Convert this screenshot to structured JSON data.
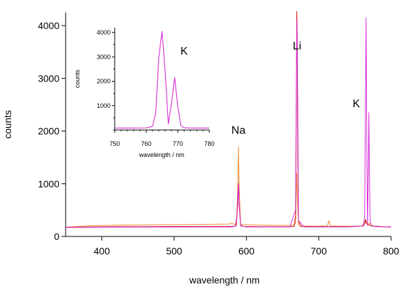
{
  "chart_data": [
    {
      "type": "line",
      "xlabel": "wavelength / nm",
      "ylabel": "counts",
      "xlim": [
        350,
        800
      ],
      "ylim": [
        0,
        4250
      ],
      "xticks": [
        400,
        500,
        600,
        700,
        800
      ],
      "yticks": [
        0,
        1000,
        2000,
        3000,
        4000
      ],
      "x_tick_labels": [
        "400",
        "500",
        "600",
        "700",
        "800"
      ],
      "y_tick_labels": [
        "0",
        "1000",
        "2000",
        "3000",
        "4000"
      ],
      "grid": false,
      "annotations": [
        {
          "text": "Na",
          "x": 589,
          "y": 1950
        },
        {
          "text": "Li",
          "x": 670,
          "y": 3550
        },
        {
          "text": "K",
          "x": 752,
          "y": 2450
        }
      ],
      "series": [
        {
          "color": "#f08a30",
          "x": [
            350,
            380,
            420,
            460,
            500,
            540,
            575,
            580,
            583,
            586,
            588,
            589,
            590,
            592,
            596,
            620,
            640,
            660,
            665,
            668,
            669.5,
            670.5,
            672,
            675,
            680,
            700,
            712,
            714,
            716,
            730,
            760,
            762,
            764,
            766,
            768,
            770,
            775,
            790,
            800
          ],
          "y": [
            175,
            200,
            215,
            220,
            225,
            230,
            235,
            250,
            230,
            240,
            800,
            1700,
            900,
            240,
            225,
            215,
            210,
            210,
            215,
            250,
            1200,
            700,
            220,
            200,
            195,
            195,
            200,
            300,
            200,
            195,
            195,
            250,
            310,
            240,
            230,
            250,
            200,
            180,
            175
          ]
        },
        {
          "color": "#d41515",
          "x": [
            350,
            380,
            420,
            460,
            500,
            540,
            580,
            585,
            587,
            588,
            589,
            590,
            592,
            596,
            620,
            660,
            666,
            668,
            669,
            669.6,
            670.2,
            671,
            672,
            675,
            700,
            740,
            762,
            764,
            765,
            766,
            768,
            772,
            790,
            800
          ],
          "y": [
            175,
            180,
            185,
            185,
            190,
            190,
            190,
            200,
            400,
            800,
            1000,
            600,
            220,
            190,
            185,
            185,
            190,
            400,
            2500,
            4270,
            3800,
            1500,
            300,
            190,
            185,
            185,
            200,
            260,
            320,
            260,
            230,
            200,
            185,
            180
          ]
        },
        {
          "color": "#d62ad6",
          "x": [
            350,
            400,
            500,
            580,
            586,
            588,
            589,
            590,
            592,
            600,
            660,
            668,
            669,
            670,
            671,
            672,
            680,
            740,
            762,
            763.5,
            764.5,
            765.5,
            766.5,
            767.5,
            768.5,
            769.3,
            770,
            771,
            773,
            780,
            800
          ],
          "y": [
            170,
            175,
            180,
            182,
            200,
            600,
            1000,
            600,
            200,
            180,
            180,
            500,
            3000,
            4100,
            2500,
            300,
            180,
            180,
            200,
            400,
            2500,
            4150,
            1500,
            200,
            1200,
            2350,
            1300,
            300,
            200,
            185,
            180
          ]
        }
      ]
    },
    {
      "type": "line",
      "xlabel": "wavelength / nm",
      "ylabel": "counts",
      "xlim": [
        750,
        780
      ],
      "ylim": [
        0,
        4200
      ],
      "xticks": [
        750,
        760,
        770,
        780
      ],
      "yticks": [
        1000,
        2000,
        3000,
        4000
      ],
      "x_tick_labels": [
        "750",
        "760",
        "770",
        "780"
      ],
      "y_tick_labels": [
        "1000",
        "2000",
        "3000",
        "4000"
      ],
      "grid": false,
      "annotations": [
        {
          "text": "K",
          "x": 772,
          "y": 3100
        }
      ],
      "series": [
        {
          "color": "#d62ad6",
          "x": [
            750,
            752,
            756,
            760,
            762,
            763,
            764,
            765,
            766,
            767,
            768,
            769,
            770,
            771,
            772,
            774,
            778,
            780
          ],
          "y": [
            80,
            80,
            80,
            85,
            150,
            700,
            3000,
            4050,
            2400,
            250,
            1100,
            2150,
            950,
            180,
            90,
            80,
            80,
            80
          ]
        }
      ]
    }
  ]
}
